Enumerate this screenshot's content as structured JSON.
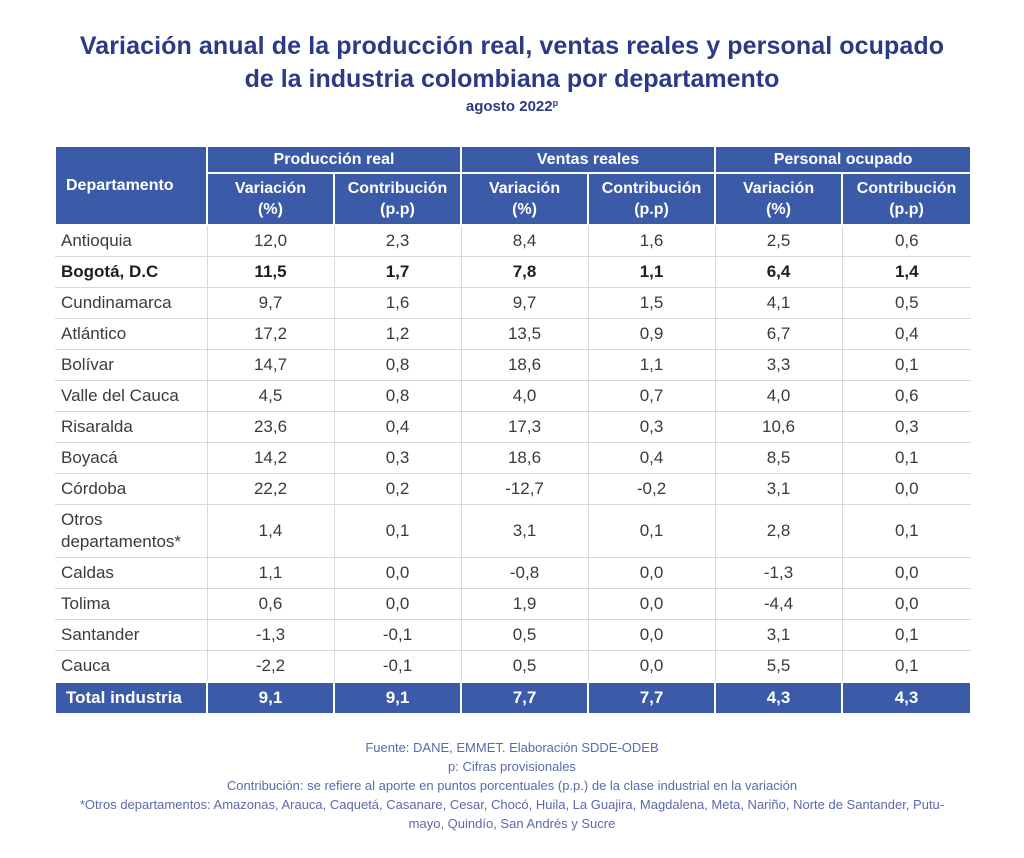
{
  "title": {
    "line1": "Variación anual de la producción real, ventas reales y personal ocupado",
    "line2": "de la industria colombiana por departamento",
    "subtitle": "agosto 2022",
    "subtitle_sup": "p"
  },
  "table": {
    "dept_header": "Departamento",
    "groups": [
      "Producción real",
      "Ventas reales",
      "Personal ocupado"
    ],
    "sub_variation": [
      "Variación",
      "(%)"
    ],
    "sub_contribution": [
      "Contribución",
      "(p.p)"
    ],
    "rows": [
      {
        "name": [
          "Antioquia"
        ],
        "values": [
          "12,0",
          "2,3",
          "8,4",
          "1,6",
          "2,5",
          "0,6"
        ]
      },
      {
        "name": [
          "Bogotá, D.C"
        ],
        "values": [
          "11,5",
          "1,7",
          "7,8",
          "1,1",
          "6,4",
          "1,4"
        ]
      },
      {
        "name": [
          "Cundinamarca"
        ],
        "values": [
          "9,7",
          "1,6",
          "9,7",
          "1,5",
          "4,1",
          "0,5"
        ]
      },
      {
        "name": [
          "Atlántico"
        ],
        "values": [
          "17,2",
          "1,2",
          "13,5",
          "0,9",
          "6,7",
          "0,4"
        ]
      },
      {
        "name": [
          "Bolívar"
        ],
        "values": [
          "14,7",
          "0,8",
          "18,6",
          "1,1",
          "3,3",
          "0,1"
        ]
      },
      {
        "name": [
          "Valle del Cauca"
        ],
        "values": [
          "4,5",
          "0,8",
          "4,0",
          "0,7",
          "4,0",
          "0,6"
        ]
      },
      {
        "name": [
          "Risaralda"
        ],
        "values": [
          "23,6",
          "0,4",
          "17,3",
          "0,3",
          "10,6",
          "0,3"
        ]
      },
      {
        "name": [
          "Boyacá"
        ],
        "values": [
          "14,2",
          "0,3",
          "18,6",
          "0,4",
          "8,5",
          "0,1"
        ]
      },
      {
        "name": [
          "Córdoba"
        ],
        "values": [
          "22,2",
          "0,2",
          "-12,7",
          "-0,2",
          "3,1",
          "0,0"
        ]
      },
      {
        "name": [
          "Otros",
          "departamentos*"
        ],
        "values": [
          "1,4",
          "0,1",
          "3,1",
          "0,1",
          "2,8",
          "0,1"
        ]
      },
      {
        "name": [
          "Caldas"
        ],
        "values": [
          "1,1",
          "0,0",
          "-0,8",
          "0,0",
          "-1,3",
          "0,0"
        ]
      },
      {
        "name": [
          "Tolima"
        ],
        "values": [
          "0,6",
          "0,0",
          "1,9",
          "0,0",
          "-4,4",
          "0,0"
        ]
      },
      {
        "name": [
          "Santander"
        ],
        "values": [
          "-1,3",
          "-0,1",
          "0,5",
          "0,0",
          "3,1",
          "0,1"
        ]
      },
      {
        "name": [
          "Cauca"
        ],
        "values": [
          "-2,2",
          "-0,1",
          "0,5",
          "0,0",
          "5,5",
          "0,1"
        ]
      }
    ],
    "total": {
      "name": "Total industria",
      "values": [
        "9,1",
        "9,1",
        "7,7",
        "7,7",
        "4,3",
        "4,3"
      ]
    }
  },
  "notes": [
    "Fuente: DANE, EMMET. Elaboración SDDE-ODEB",
    "p: Cifras provisionales",
    "Contribución: se refiere al aporte en puntos porcentuales (p.p.) de la clase industrial en la variación",
    "*Otros departamentos: Amazonas, Arauca, Caquetá, Casanare, Cesar, Chocó, Huila, La Guajira, Magdalena, Meta, Nariño, Norte de Santander, Putu-",
    "mayo, Quindío, San Andrés y Sucre"
  ],
  "colors": {
    "header_bg": "#3b5ba8",
    "title": "#2a3a86",
    "notes": "#5b6aaa"
  }
}
